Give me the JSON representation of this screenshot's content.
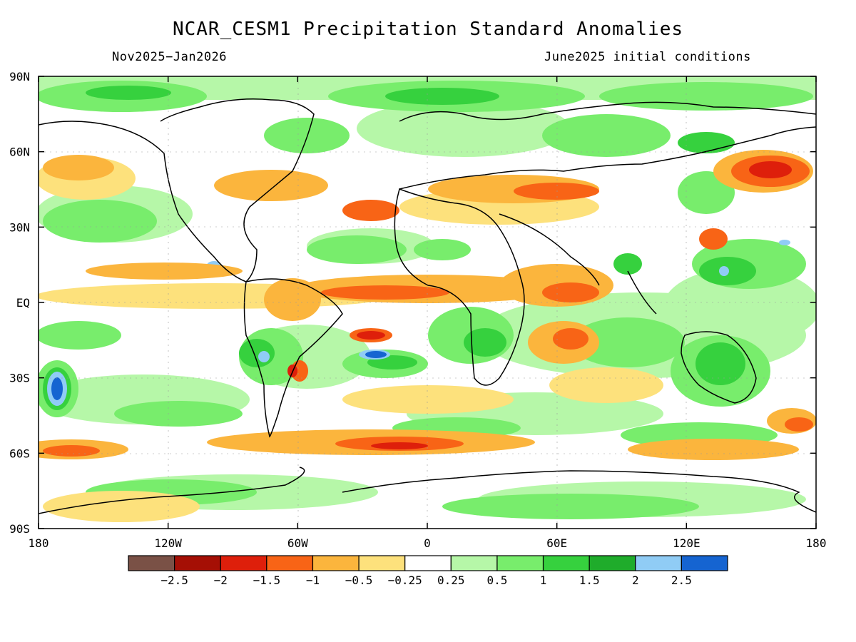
{
  "title": "NCAR_CESM1 Precipitation Standard Anomalies",
  "valid_period": "Nov2025−Jan2026",
  "initial_conditions": "June2025 initial conditions",
  "y_ticks": [
    "90N",
    "60N",
    "30N",
    "EQ",
    "30S",
    "60S",
    "90S"
  ],
  "x_ticks": [
    "180",
    "120W",
    "60W",
    "0",
    "60E",
    "120E",
    "180"
  ],
  "legend": {
    "colors": [
      "#7a5146",
      "#a50f05",
      "#de1f0b",
      "#f86416",
      "#fbb53d",
      "#fde17c",
      "#ffffff",
      "#b6f7a8",
      "#78ed6c",
      "#36d13e",
      "#1fac2b",
      "#90ccf5",
      "#1564d1"
    ],
    "labels": [
      "−2.5",
      "−2",
      "−1.5",
      "−1",
      "−0.5",
      "−0.25",
      "0.25",
      "0.5",
      "1",
      "1.5",
      "2",
      "2.5"
    ]
  }
}
